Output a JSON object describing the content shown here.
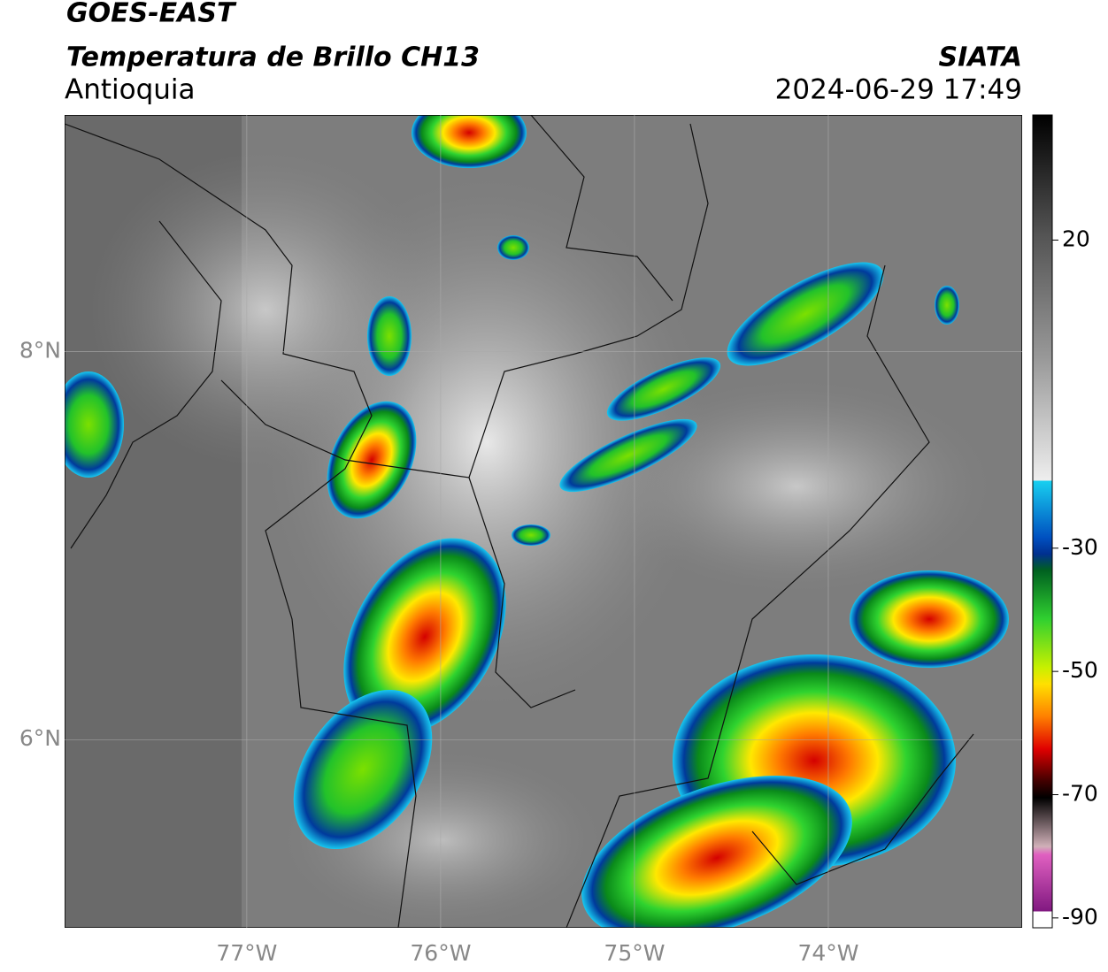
{
  "header": {
    "title": "GOES-EAST",
    "subtitle": "Temperatura de Brillo CH13",
    "region": "Antioquia",
    "source": "SIATA",
    "timestamp": "2024-06-29 17:49"
  },
  "map": {
    "xlim": [
      -77.94,
      -73.0
    ],
    "ylim": [
      5.03,
      9.22
    ],
    "xticks": [
      {
        "value": -77,
        "label": "77°W"
      },
      {
        "value": -76,
        "label": "76°W"
      },
      {
        "value": -75,
        "label": "75°W"
      },
      {
        "value": -74,
        "label": "74°W"
      }
    ],
    "yticks": [
      {
        "value": 6,
        "label": "6°N"
      },
      {
        "value": 8,
        "label": "8°N"
      }
    ]
  },
  "colorbar": {
    "lim": [
      -91.6,
      40.3
    ],
    "ticks": [
      20,
      -30,
      -50,
      -70,
      -90
    ]
  }
}
